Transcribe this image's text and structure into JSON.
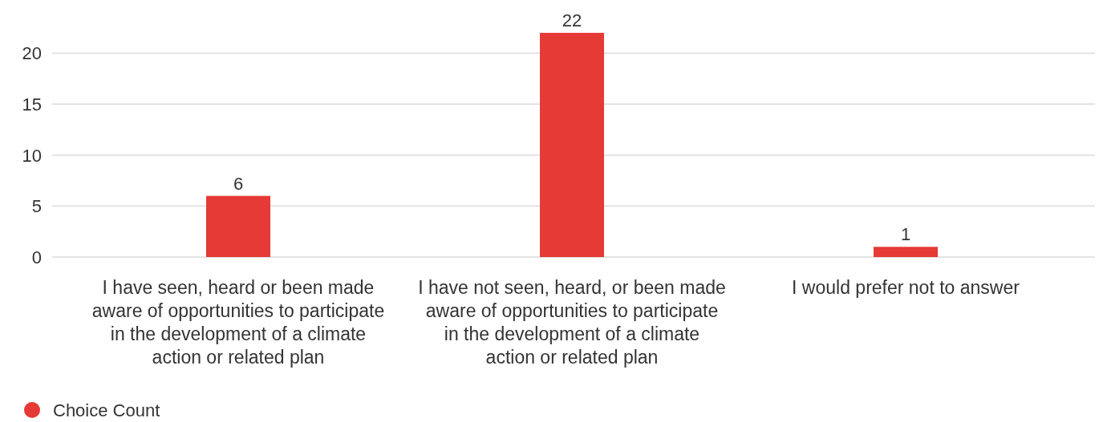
{
  "chart_data": {
    "type": "bar",
    "categories": [
      "I have seen, heard or been made aware of opportunities to participate in the development of a climate action or related plan",
      "I have not seen, heard, or been made aware of opportunities to participate in the development of a climate action or related plan",
      "I would prefer not to answer"
    ],
    "series": [
      {
        "name": "Choice Count",
        "color": "#e53a35",
        "values": [
          6,
          22,
          1
        ]
      }
    ],
    "ylim": [
      0,
      22
    ],
    "yticks": [
      0,
      5,
      10,
      15,
      20
    ],
    "grid": "y",
    "data_labels": true,
    "legend": "bottom left"
  }
}
